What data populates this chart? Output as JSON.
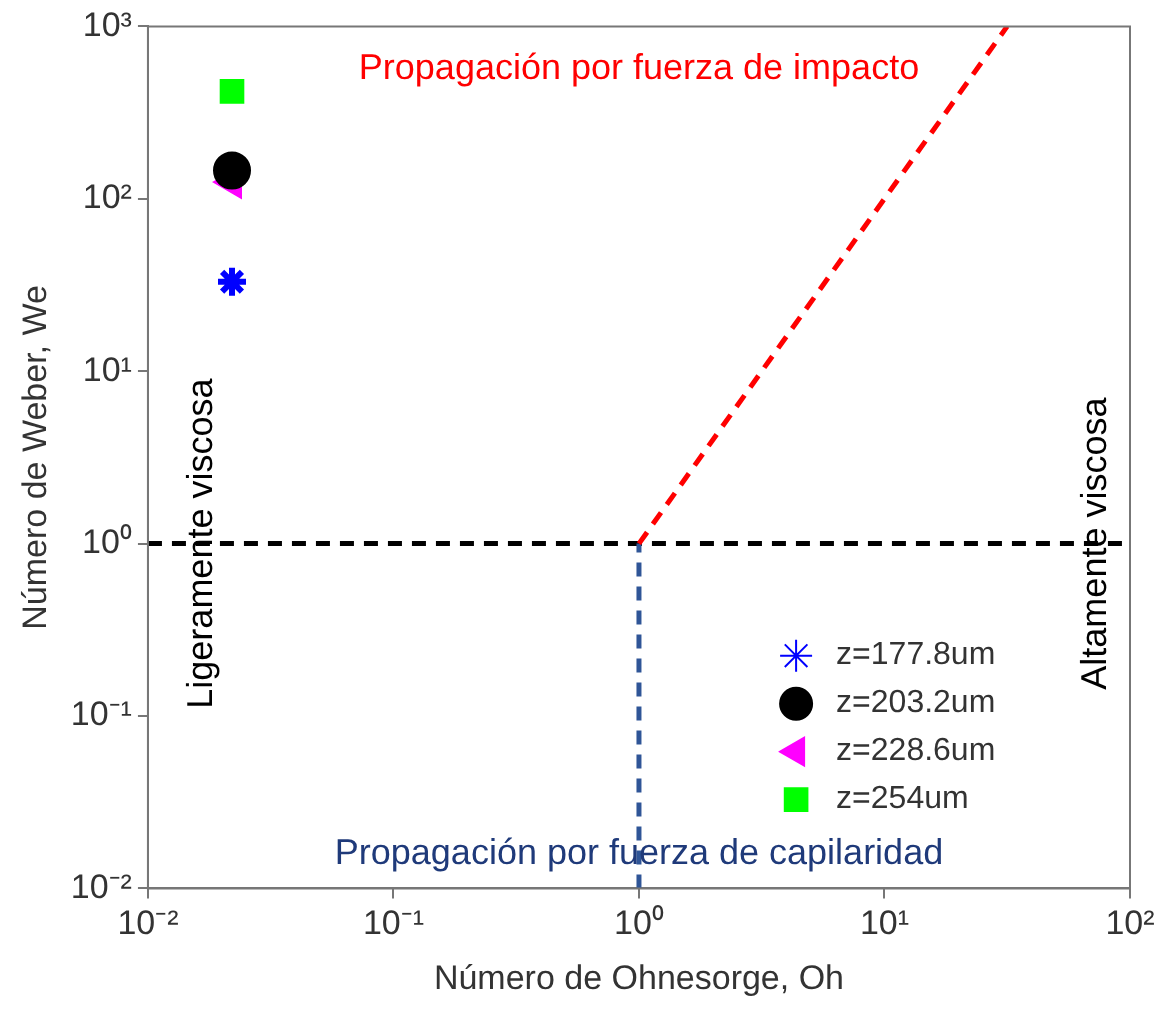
{
  "chart_data": {
    "type": "scatter",
    "xlabel": "Número de Ohnesorge, Oh",
    "ylabel": "Número de Weber, We",
    "log": "xy",
    "xlim": [
      0.01,
      100
    ],
    "ylim": [
      0.01,
      1000
    ],
    "xticks": [
      {
        "value": 0.01,
        "label": "10⁻²"
      },
      {
        "value": 0.1,
        "label": "10⁻¹"
      },
      {
        "value": 1,
        "label": "10⁰"
      },
      {
        "value": 10,
        "label": "10¹"
      },
      {
        "value": 100,
        "label": "10²"
      }
    ],
    "yticks": [
      {
        "value": 0.01,
        "label": "10⁻²"
      },
      {
        "value": 0.1,
        "label": "10⁻¹"
      },
      {
        "value": 1,
        "label": "10⁰"
      },
      {
        "value": 10,
        "label": "10¹"
      },
      {
        "value": 100,
        "label": "10²"
      },
      {
        "value": 1000,
        "label": "10³"
      }
    ],
    "grid": false,
    "legend": "bottom right",
    "series": [
      {
        "name": "z=177.8um",
        "color": "#0000ff",
        "marker": "cross",
        "x": [
          0.022
        ],
        "values": [
          33
        ]
      },
      {
        "name": "z=203.2um",
        "color": "#000000",
        "marker": "circle",
        "x": [
          0.022
        ],
        "values": [
          146
        ]
      },
      {
        "name": "z=228.6um",
        "color": "#ff00ff",
        "marker": "triangle",
        "x": [
          0.022
        ],
        "values": [
          125
        ]
      },
      {
        "name": "z=254um",
        "color": "#00ff00",
        "marker": "square",
        "x": [
          0.022
        ],
        "values": [
          420
        ]
      },
      {
        "type": "line",
        "color": "#ff0000",
        "marker": "none",
        "line_style": "dashed",
        "x": [
          1,
          31.6
        ],
        "values": [
          1,
          1000
        ]
      },
      {
        "type": "line",
        "color": "#2f5597",
        "marker": "none",
        "line_style": "dashed",
        "x": [
          1,
          1
        ],
        "values": [
          0.01,
          1
        ]
      }
    ],
    "ref_lines": [
      {
        "axis": "y",
        "value": 1,
        "color": "#000000",
        "line_style": "dashed"
      }
    ],
    "annotations": [
      "Propagación por fuerza de impacto",
      "Propagación por fuerza de capilaridad",
      "Ligeramente viscosa",
      "Altamente viscosa"
    ]
  }
}
